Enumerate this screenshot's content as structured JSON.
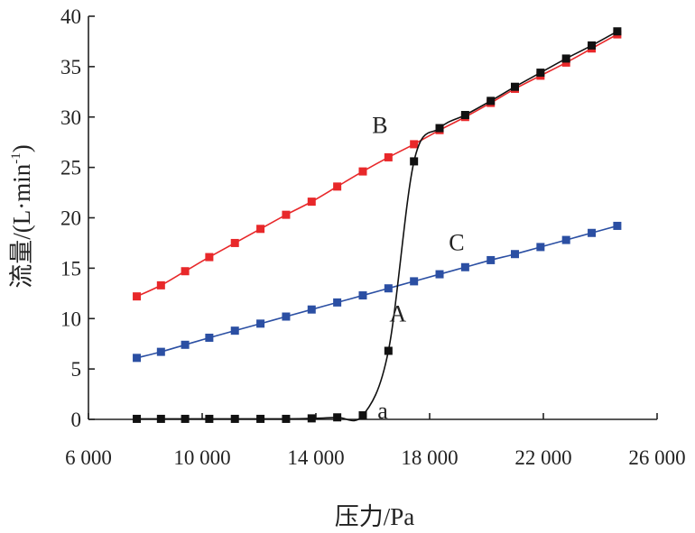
{
  "chart_data": {
    "type": "line",
    "xlabel": "压力/Pa",
    "ylabel_main": "流量/(L·min",
    "ylabel_sup": "-1",
    "ylabel_close": ")",
    "xlim": [
      6000,
      26000
    ],
    "ylim": [
      0,
      40
    ],
    "x_ticks": [
      6000,
      10000,
      14000,
      18000,
      22000,
      26000
    ],
    "x_tick_labels": [
      "6 000",
      "10 000",
      "14 000",
      "18 000",
      "22 000",
      "26 000"
    ],
    "y_ticks": [
      0,
      5,
      10,
      15,
      20,
      25,
      30,
      35,
      40
    ],
    "y_tick_labels": [
      "0",
      "5",
      "10",
      "15",
      "20",
      "25",
      "30",
      "35",
      "40"
    ],
    "grid": false,
    "series": [
      {
        "name": "B",
        "color": "#e8282a",
        "line_color": "#e8282a",
        "x": [
          7700,
          8550,
          9400,
          10250,
          11150,
          12050,
          12950,
          13850,
          14750,
          15650,
          16550,
          17450,
          18350,
          19250,
          20150,
          21000,
          21900,
          22800,
          23700,
          24600
        ],
        "y": [
          12.2,
          13.3,
          14.7,
          16.1,
          17.5,
          18.9,
          20.3,
          21.6,
          23.1,
          24.6,
          26.0,
          27.3,
          28.7,
          30.0,
          31.4,
          32.8,
          34.1,
          35.4,
          36.8,
          38.2
        ]
      },
      {
        "name": "C",
        "color": "#2b4fa3",
        "line_color": "#2b4fa3",
        "x": [
          7700,
          8550,
          9400,
          10250,
          11150,
          12050,
          12950,
          13850,
          14750,
          15650,
          16550,
          17450,
          18350,
          19250,
          20150,
          21000,
          21900,
          22800,
          23700,
          24600
        ],
        "y": [
          6.1,
          6.7,
          7.4,
          8.1,
          8.8,
          9.5,
          10.2,
          10.9,
          11.6,
          12.3,
          13.0,
          13.7,
          14.4,
          15.1,
          15.8,
          16.4,
          17.1,
          17.8,
          18.5,
          19.2
        ]
      },
      {
        "name": "A",
        "color": "#111111",
        "line_color": "#111111",
        "x": [
          7700,
          8550,
          9400,
          10250,
          11150,
          12050,
          12950,
          13850,
          14750,
          15650,
          16550,
          17450,
          18350,
          19250,
          20150,
          21000,
          21900,
          22800,
          23700,
          24600
        ],
        "y": [
          0.05,
          0.05,
          0.05,
          0.05,
          0.05,
          0.05,
          0.05,
          0.1,
          0.2,
          0.4,
          6.8,
          25.6,
          28.9,
          30.2,
          31.6,
          33.0,
          34.4,
          35.8,
          37.1,
          38.5
        ]
      }
    ],
    "annotations": [
      {
        "text": "B",
        "x": 16250,
        "y": 28.4
      },
      {
        "text": "C",
        "x": 18950,
        "y": 16.8
      },
      {
        "text": "A",
        "x": 16880,
        "y": 9.7
      },
      {
        "text": "a",
        "x": 16350,
        "y": 0.1
      }
    ]
  }
}
